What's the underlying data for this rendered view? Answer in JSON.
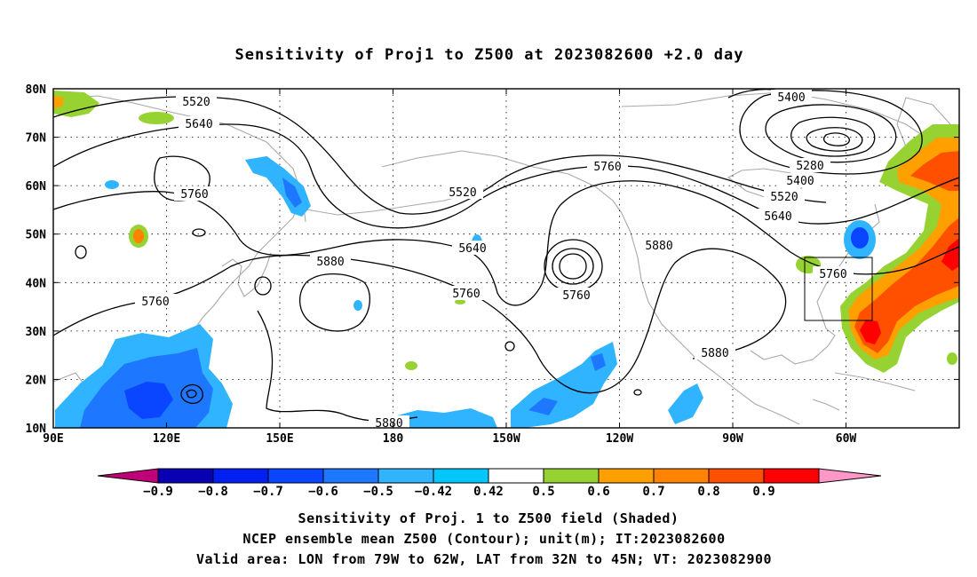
{
  "title": "Sensitivity of Proj1 to Z500 at 2023082600 +2.0 day",
  "map": {
    "lat_ticks": [
      "80N",
      "70N",
      "60N",
      "50N",
      "40N",
      "30N",
      "20N",
      "10N"
    ],
    "lon_ticks": [
      "90E",
      "120E",
      "150E",
      "180",
      "150W",
      "120W",
      "90W",
      "60W"
    ],
    "lon_range": [
      90,
      330
    ],
    "lat_range": [
      10,
      80
    ],
    "grid": "dotted",
    "valid_area_box": {
      "lon": [
        281,
        298
      ],
      "lat": [
        32,
        45
      ]
    }
  },
  "contour_labels": [
    "5520",
    "5640",
    "5760",
    "5400",
    "5400",
    "5280",
    "5520",
    "5640",
    "5760",
    "5520",
    "5640",
    "5880",
    "5760",
    "5760",
    "5880",
    "5760",
    "5760",
    "5880",
    "5880"
  ],
  "colorbar": {
    "labels": [
      "-0.9",
      "-0.8",
      "-0.7",
      "-0.6",
      "-0.5",
      "-0.42",
      "0.42",
      "0.5",
      "0.6",
      "0.7",
      "0.8",
      "0.9"
    ],
    "colors": [
      "#0a00b4",
      "#0020f0",
      "#0a46ff",
      "#1e78ff",
      "#30b4ff",
      "#00c8ff",
      "#ffffff",
      "#96d232",
      "#ffa000",
      "#ff8200",
      "#ff5000",
      "#ff0000"
    ],
    "low_end_color": "#c00078",
    "high_end_color": "#ff96c8"
  },
  "footer": {
    "line1": "Sensitivity of Proj. 1 to Z500 field (Shaded)",
    "line2": "NCEP ensemble mean Z500 (Contour); unit(m); IT:2023082600",
    "line3": "Valid area: LON from 79W to 62W, LAT from 32N to 45N; VT: 2023082900"
  }
}
